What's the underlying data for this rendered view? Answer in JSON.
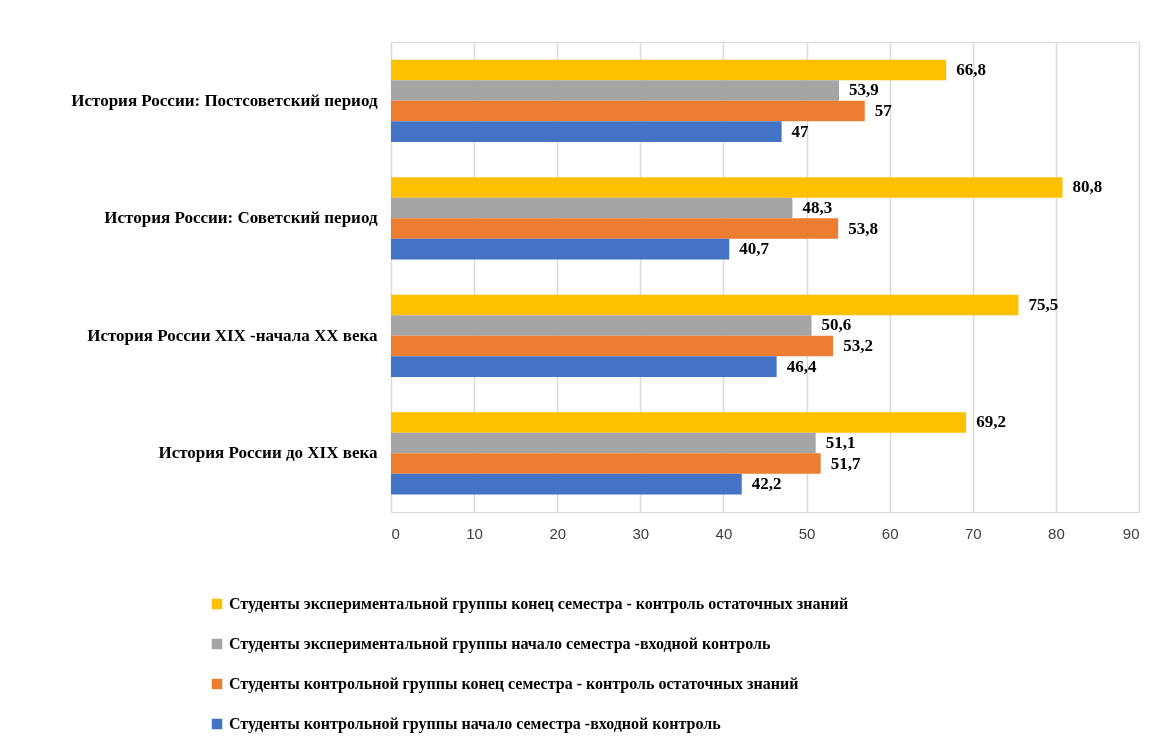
{
  "chart_data": {
    "type": "bar",
    "orientation": "horizontal",
    "categories": [
      "История России: Постсоветский период",
      "История России: Советский период",
      "История России XIX -начала XX века",
      "История России до XIX века"
    ],
    "series": [
      {
        "name": "Студенты экспериментальной группы конец семестра - контроль остаточных знаний",
        "color": "#ffc000",
        "values": [
          66.8,
          80.8,
          75.5,
          69.2
        ],
        "value_labels": [
          "66,8",
          "80,8",
          "75,5",
          "69,2"
        ]
      },
      {
        "name": "Студенты экспериментальной группы начало семестра -входной контроль",
        "color": "#a5a5a5",
        "values": [
          53.9,
          48.3,
          50.6,
          51.1
        ],
        "value_labels": [
          "53,9",
          "48,3",
          "50,6",
          "51,1"
        ]
      },
      {
        "name": "Студенты контрольной группы конец семестра - контроль остаточных знаний",
        "color": "#ed7d31",
        "values": [
          57,
          53.8,
          53.2,
          51.7
        ],
        "value_labels": [
          "57",
          "53,8",
          "53,2",
          "51,7"
        ]
      },
      {
        "name": "Студенты контрольной группы начало семестра -входной контроль",
        "color": "#4472c4",
        "values": [
          47,
          40.7,
          46.4,
          42.2
        ],
        "value_labels": [
          "47",
          "40,7",
          "46,4",
          "42,2"
        ]
      }
    ],
    "xlim": [
      0,
      90
    ],
    "xticks": [
      0,
      10,
      20,
      30,
      40,
      50,
      60,
      70,
      80,
      90
    ],
    "grid": "x",
    "legend": "bottom"
  }
}
